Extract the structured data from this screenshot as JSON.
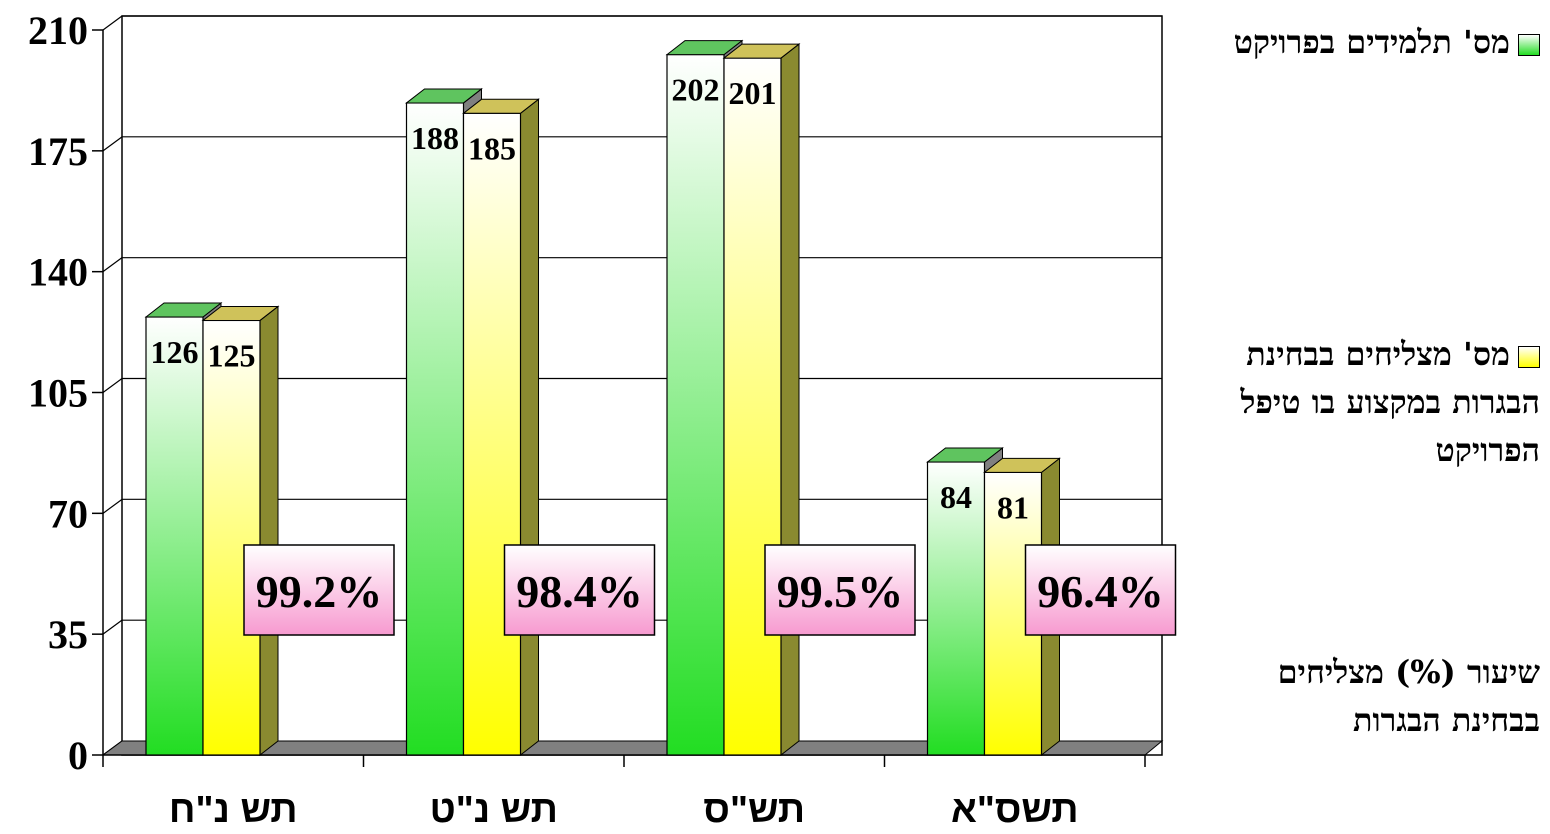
{
  "chart_data": {
    "type": "bar",
    "categories": [
      "תש נ\"ח",
      "תש נ\"ט",
      "תש\"ס",
      "תשס\"א"
    ],
    "series": [
      {
        "name": "מס' תלמידים בפרויקט",
        "values": [
          126,
          188,
          202,
          84
        ]
      },
      {
        "name": "מס' מצליחים בבחינת הבגרות במקצוע בו טיפל הפרויקט",
        "values": [
          125,
          185,
          201,
          81
        ]
      }
    ],
    "percent_series": {
      "name": "שיעור (%) מצליחים בבחינת הבגרות",
      "labels": [
        "99.2%",
        "98.4%",
        "99.5%",
        "96.4%"
      ]
    },
    "y_ticks": [
      "0",
      "35",
      "70",
      "105",
      "140",
      "175",
      "210"
    ],
    "ylim": [
      0,
      210
    ],
    "grid": true,
    "legend_position": "right",
    "colors": {
      "series1_top": "#ffffff",
      "series1_bottom": "#22dd22",
      "series2_top": "#ffffff",
      "series2_bottom": "#ffff00",
      "side": "#808080",
      "label_box_top": "#ffffff",
      "label_box_bottom": "#f79ad0"
    }
  },
  "legend": {
    "items": [
      {
        "text": "מס' תלמידים בפרויקט",
        "swatch": "green"
      },
      {
        "text": "מס' מצליחים בבחינת הבגרות במקצוע בו טיפל הפרויקט",
        "swatch": "yellow"
      },
      {
        "text": "שיעור (%) מצליחים בבחינת הבגרות",
        "swatch": "none"
      }
    ]
  }
}
